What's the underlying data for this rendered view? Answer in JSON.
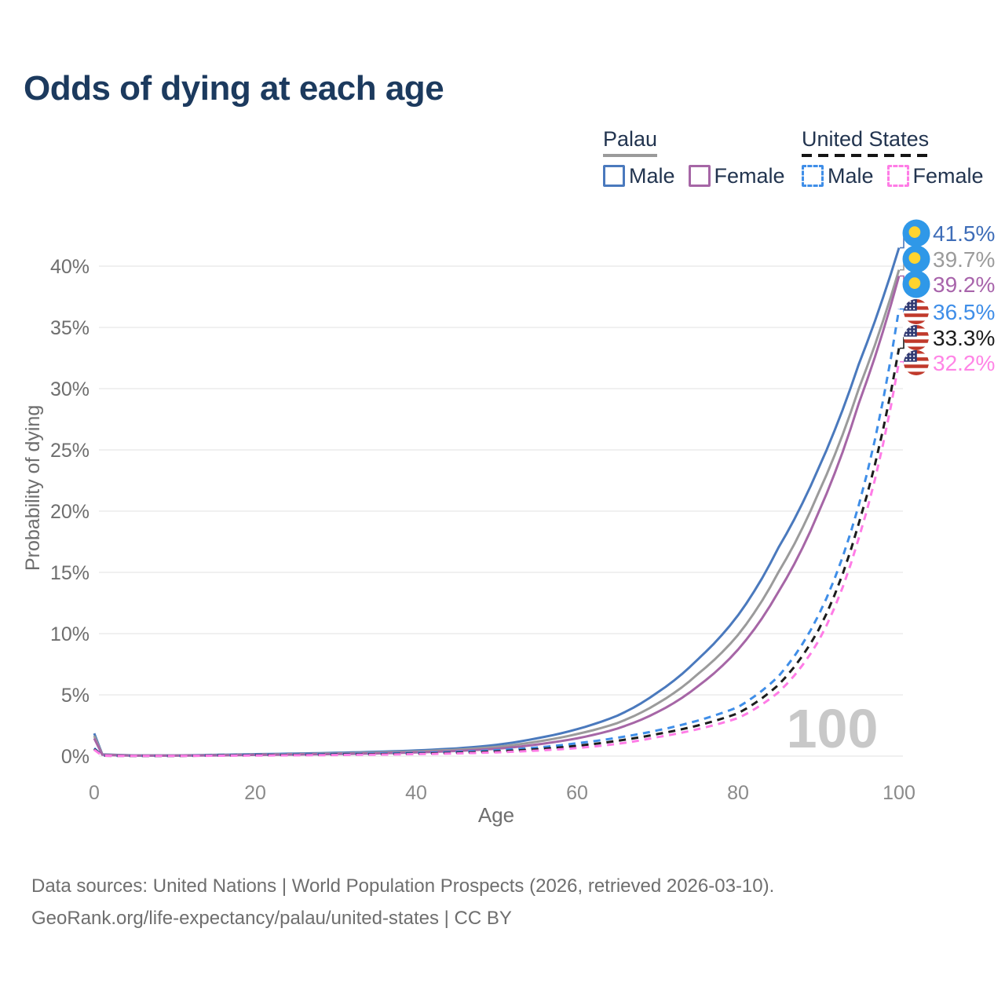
{
  "legend": {
    "groups": [
      {
        "label": "Palau",
        "underline_color": "#9a9a9a",
        "underline_style": "solid",
        "items": [
          {
            "label": "Male",
            "color": "#4a79bd",
            "style": "solid"
          },
          {
            "label": "Female",
            "color": "#a666a6",
            "style": "solid"
          }
        ]
      },
      {
        "label": "United States",
        "underline_color": "#141414",
        "underline_style": "dashed",
        "items": [
          {
            "label": "Male",
            "color": "#3f8ee8",
            "style": "dashed"
          },
          {
            "label": "Female",
            "color": "#ff7ce6",
            "style": "dashed"
          }
        ]
      }
    ]
  },
  "chart_data": {
    "type": "line",
    "title": "Odds of dying at each age",
    "xlabel": "Age",
    "ylabel": "Probability of dying",
    "xlim": [
      0,
      100
    ],
    "ylim": [
      0,
      42
    ],
    "grid": true,
    "x_ticks": [
      0,
      20,
      40,
      60,
      80,
      100
    ],
    "y_ticks": [
      "0%",
      "5%",
      "10%",
      "15%",
      "20%",
      "25%",
      "30%",
      "35%",
      "40%"
    ],
    "watermark_age": "100",
    "series": [
      {
        "name": "Palau Male",
        "color": "#4a79bd",
        "dash": false,
        "flag": "palau",
        "end_label": "41.5%",
        "end_label_color": "#3e6db8",
        "values": [
          [
            0,
            1.85
          ],
          [
            1,
            0.15
          ],
          [
            5,
            0.06
          ],
          [
            10,
            0.06
          ],
          [
            15,
            0.1
          ],
          [
            20,
            0.16
          ],
          [
            25,
            0.21
          ],
          [
            30,
            0.27
          ],
          [
            35,
            0.35
          ],
          [
            40,
            0.46
          ],
          [
            45,
            0.63
          ],
          [
            50,
            0.92
          ],
          [
            55,
            1.45
          ],
          [
            60,
            2.2
          ],
          [
            65,
            3.3
          ],
          [
            70,
            5.2
          ],
          [
            75,
            7.9
          ],
          [
            80,
            11.5
          ],
          [
            85,
            17.0
          ],
          [
            90,
            23.5
          ],
          [
            95,
            32.0
          ],
          [
            100,
            41.5
          ]
        ]
      },
      {
        "name": "Palau",
        "color": "#9b9b9b",
        "dash": false,
        "flag": "palau",
        "end_label": "39.7%",
        "end_label_color": "#9b9b9b",
        "values": [
          [
            0,
            1.65
          ],
          [
            1,
            0.13
          ],
          [
            5,
            0.05
          ],
          [
            10,
            0.05
          ],
          [
            15,
            0.08
          ],
          [
            20,
            0.13
          ],
          [
            25,
            0.17
          ],
          [
            30,
            0.22
          ],
          [
            35,
            0.29
          ],
          [
            40,
            0.38
          ],
          [
            45,
            0.52
          ],
          [
            50,
            0.75
          ],
          [
            55,
            1.18
          ],
          [
            60,
            1.8
          ],
          [
            65,
            2.7
          ],
          [
            70,
            4.3
          ],
          [
            75,
            6.7
          ],
          [
            80,
            9.9
          ],
          [
            85,
            15.0
          ],
          [
            90,
            21.5
          ],
          [
            95,
            30.0
          ],
          [
            100,
            39.7
          ]
        ]
      },
      {
        "name": "Palau Female",
        "color": "#a666a6",
        "dash": false,
        "flag": "palau",
        "end_label": "39.2%",
        "end_label_color": "#a864ab",
        "values": [
          [
            0,
            1.45
          ],
          [
            1,
            0.11
          ],
          [
            5,
            0.04
          ],
          [
            10,
            0.04
          ],
          [
            15,
            0.06
          ],
          [
            20,
            0.1
          ],
          [
            25,
            0.13
          ],
          [
            30,
            0.17
          ],
          [
            35,
            0.22
          ],
          [
            40,
            0.3
          ],
          [
            45,
            0.42
          ],
          [
            50,
            0.6
          ],
          [
            55,
            0.95
          ],
          [
            60,
            1.45
          ],
          [
            65,
            2.25
          ],
          [
            70,
            3.6
          ],
          [
            75,
            5.7
          ],
          [
            80,
            8.7
          ],
          [
            85,
            13.4
          ],
          [
            90,
            19.9
          ],
          [
            95,
            28.8
          ],
          [
            100,
            39.2
          ]
        ]
      },
      {
        "name": "United States Male",
        "color": "#3f8ee8",
        "dash": true,
        "flag": "us",
        "end_label": "36.5%",
        "end_label_color": "#3f8ee8",
        "values": [
          [
            0,
            0.64
          ],
          [
            1,
            0.04
          ],
          [
            5,
            0.02
          ],
          [
            10,
            0.02
          ],
          [
            15,
            0.07
          ],
          [
            20,
            0.11
          ],
          [
            25,
            0.14
          ],
          [
            30,
            0.17
          ],
          [
            35,
            0.21
          ],
          [
            40,
            0.26
          ],
          [
            45,
            0.34
          ],
          [
            50,
            0.48
          ],
          [
            55,
            0.7
          ],
          [
            60,
            1.05
          ],
          [
            65,
            1.5
          ],
          [
            70,
            2.1
          ],
          [
            75,
            2.9
          ],
          [
            80,
            4.0
          ],
          [
            85,
            6.5
          ],
          [
            90,
            11.5
          ],
          [
            95,
            20.5
          ],
          [
            100,
            36.5
          ]
        ]
      },
      {
        "name": "United States",
        "color": "#1c1c1c",
        "dash": true,
        "flag": "us",
        "end_label": "33.3%",
        "end_label_color": "#1c1c1c",
        "values": [
          [
            0,
            0.58
          ],
          [
            1,
            0.035
          ],
          [
            5,
            0.015
          ],
          [
            10,
            0.015
          ],
          [
            15,
            0.05
          ],
          [
            20,
            0.08
          ],
          [
            25,
            0.1
          ],
          [
            30,
            0.13
          ],
          [
            35,
            0.16
          ],
          [
            40,
            0.2
          ],
          [
            45,
            0.27
          ],
          [
            50,
            0.38
          ],
          [
            55,
            0.56
          ],
          [
            60,
            0.84
          ],
          [
            65,
            1.25
          ],
          [
            70,
            1.8
          ],
          [
            75,
            2.5
          ],
          [
            80,
            3.5
          ],
          [
            85,
            5.8
          ],
          [
            90,
            10.3
          ],
          [
            95,
            19.0
          ],
          [
            100,
            33.3
          ]
        ]
      },
      {
        "name": "United States Female",
        "color": "#ff7ce6",
        "dash": true,
        "flag": "us",
        "end_label": "32.2%",
        "end_label_color": "#ff85e6",
        "values": [
          [
            0,
            0.52
          ],
          [
            1,
            0.03
          ],
          [
            5,
            0.015
          ],
          [
            10,
            0.015
          ],
          [
            15,
            0.03
          ],
          [
            20,
            0.05
          ],
          [
            25,
            0.07
          ],
          [
            30,
            0.09
          ],
          [
            35,
            0.12
          ],
          [
            40,
            0.16
          ],
          [
            45,
            0.22
          ],
          [
            50,
            0.31
          ],
          [
            55,
            0.45
          ],
          [
            60,
            0.66
          ],
          [
            65,
            1.0
          ],
          [
            70,
            1.55
          ],
          [
            75,
            2.2
          ],
          [
            80,
            3.1
          ],
          [
            85,
            5.2
          ],
          [
            90,
            9.4
          ],
          [
            95,
            17.8
          ],
          [
            100,
            32.2
          ]
        ]
      }
    ]
  },
  "footer": {
    "line1": "Data sources: United Nations | World Population Prospects (2026, retrieved 2026-03-10).",
    "line2": "GeoRank.org/life-expectancy/palau/united-states | CC BY"
  }
}
